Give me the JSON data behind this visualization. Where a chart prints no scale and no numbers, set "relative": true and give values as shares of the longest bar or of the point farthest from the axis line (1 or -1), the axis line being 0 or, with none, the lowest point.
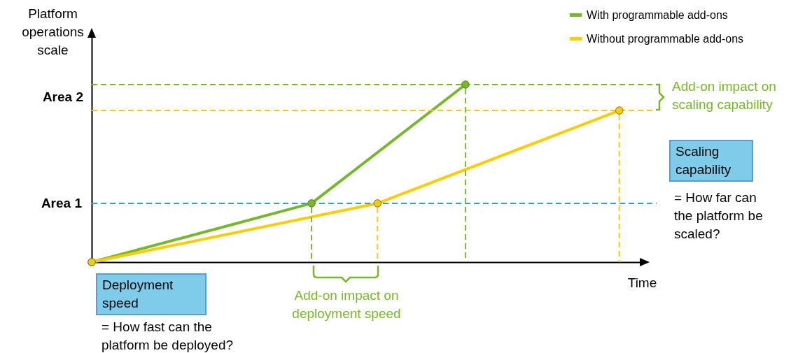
{
  "chart_data": {
    "type": "line",
    "xlabel": "Time",
    "ylabel": "Platform operations scale",
    "legend": "top right",
    "marker": "circle",
    "line_style": "solid",
    "relative": true,
    "categories": [
      null,
      null,
      null,
      null,
      null,
      null,
      null,
      null,
      null,
      null,
      null,
      null,
      null,
      null,
      null,
      null,
      null,
      null,
      null,
      null,
      null,
      null,
      null,
      null,
      null
    ],
    "series": [
      {
        "name": "With programmable add-ons",
        "color": "#77b82a",
        "values": [
          0,
          null,
          null,
          null,
          null,
          null,
          null,
          null,
          null,
          null,
          0.331,
          null,
          null,
          null,
          null,
          null,
          null,
          1,
          null,
          null,
          null,
          null,
          null,
          null,
          null
        ]
      },
      {
        "name": "Without programmable add-ons",
        "color": "#ffcc00",
        "values": [
          0,
          null,
          null,
          null,
          null,
          null,
          null,
          null,
          null,
          null,
          null,
          null,
          null,
          0.331,
          null,
          null,
          null,
          null,
          null,
          null,
          null,
          null,
          null,
          null,
          0.854
        ]
      }
    ],
    "ref_lines": [
      {
        "axis": "y",
        "value": 0.331,
        "label": "Area 1",
        "color": "#1aa3e8",
        "line_style": "dashed"
      },
      {
        "axis": "y",
        "value": 1,
        "color": "#77b82a",
        "line_style": "dashed"
      },
      {
        "axis": "y",
        "value": 0.854,
        "color": "#ffcc00",
        "line_style": "dashed"
      }
    ],
    "annotations": [
      "Area 2",
      "Add-on impact on scaling capability",
      "Add-on impact on deployment speed",
      "Scaling capability",
      "= How far can the platform be scaled?",
      "Deployment speed",
      "= How fast can the platform be deployed?"
    ]
  }
}
